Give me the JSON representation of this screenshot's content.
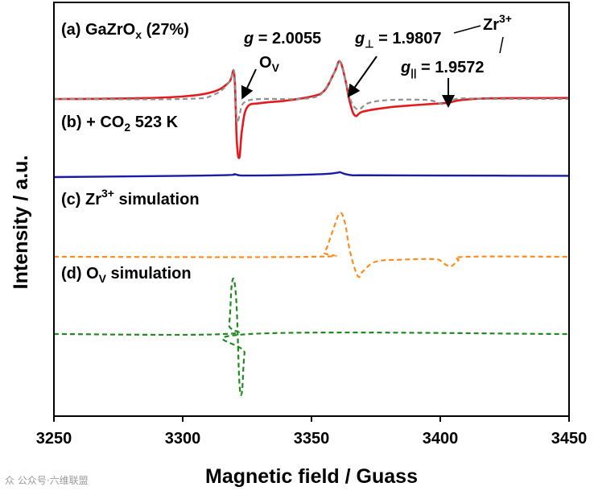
{
  "chart_data": {
    "type": "line",
    "xlabel": "Magnetic field / Guass",
    "ylabel": "Intensity / a.u.",
    "xlim": [
      3250,
      3450
    ],
    "x_ticks": [
      3250,
      3300,
      3350,
      3400,
      3450
    ],
    "y_ticks_visible": false,
    "series": [
      {
        "name": "(a) GaZrOx (27%)",
        "color": "#e41a1c",
        "style": "solid",
        "x": [
          3250,
          3280,
          3300,
          3312,
          3318,
          3320,
          3321,
          3322,
          3323,
          3325,
          3330,
          3340,
          3350,
          3355,
          3359,
          3361,
          3363,
          3365,
          3367,
          3370,
          3380,
          3395,
          3403,
          3408,
          3420,
          3450
        ],
        "y": [
          0,
          0.3,
          1.2,
          3.5,
          8,
          12,
          -20,
          -28,
          -15,
          -4,
          -2,
          -0.8,
          1.2,
          4,
          13,
          18,
          10,
          -2,
          -8,
          -6,
          -4,
          -2.5,
          -1.8,
          -0.5,
          0.3,
          0.5
        ]
      },
      {
        "name": "(a) GaZrOx (27%) dashed overlay",
        "color": "#909090",
        "style": "dashed",
        "x": [
          3250,
          3300,
          3312,
          3318,
          3320,
          3321,
          3322,
          3323,
          3325,
          3330,
          3350,
          3356,
          3360,
          3361,
          3363,
          3365,
          3368,
          3372,
          3380,
          3395,
          3401,
          3404,
          3408,
          3420,
          3450
        ],
        "y": [
          0,
          0,
          2,
          8,
          13,
          -10,
          -8,
          -3,
          -1,
          0,
          0.5,
          6,
          16,
          18,
          10,
          0,
          -5,
          -2,
          -0.5,
          -0.5,
          -2.5,
          -1,
          0.3,
          0,
          0
        ]
      },
      {
        "name": "(b) + CO2 523 K",
        "color": "#1a1aa6",
        "style": "solid",
        "x": [
          3250,
          3300,
          3318,
          3320,
          3322,
          3325,
          3340,
          3355,
          3360,
          3361,
          3363,
          3366,
          3370,
          3400,
          3450
        ],
        "y": [
          0,
          1,
          1.6,
          2.2,
          1.4,
          1.2,
          1.5,
          2.4,
          3.4,
          3.8,
          2.4,
          1.4,
          1.4,
          1.2,
          1.0
        ]
      },
      {
        "name": "(c) Zr3+ simulation",
        "color": "#ff8c1a",
        "style": "dashed",
        "x": [
          3250,
          3350,
          3355,
          3358,
          3361,
          3363,
          3365,
          3368,
          3370,
          3375,
          3385,
          3398,
          3401,
          3404,
          3407,
          3410,
          3450
        ],
        "y": [
          0,
          0,
          2,
          10,
          18,
          14,
          2,
          -8,
          -6,
          -2,
          -1.2,
          -1,
          -2.5,
          -4,
          -1.5,
          0,
          0
        ]
      },
      {
        "name": "(d) OV simulation",
        "color": "#1f8a1f",
        "style": "dashed",
        "x": [
          3250,
          3316,
          3318,
          3319,
          3320,
          3321,
          3322,
          3323,
          3324,
          3326,
          3450
        ],
        "y": [
          0,
          0,
          4,
          20,
          22,
          10,
          -20,
          -24,
          -8,
          0,
          0
        ]
      }
    ],
    "annotations": {
      "a_prefix": "(a) GaZrO",
      "a_sub": "x",
      "a_suffix": " (27%)",
      "b_prefix": "(b) + CO",
      "b_sub": "2",
      "b_suffix": " 523 K",
      "c_prefix": "(c) Zr",
      "c_sup": "3+",
      "c_suffix": " simulation",
      "d_prefix": "(d) O",
      "d_sub": "V",
      "d_suffix": " simulation",
      "g_iso_symbol": "g",
      "g_iso_value": " = 2.0055",
      "ov_main": "O",
      "ov_sub": "V",
      "g_perp_symbol": "g",
      "g_perp_sub": "⊥",
      "g_perp_value": " = 1.9807",
      "g_par_symbol": "g",
      "g_par_sub": "||",
      "g_par_value": " = 1.9572",
      "zr_main": "Zr",
      "zr_sup": "3+"
    }
  },
  "watermark": "众 公众号·六维联盟"
}
